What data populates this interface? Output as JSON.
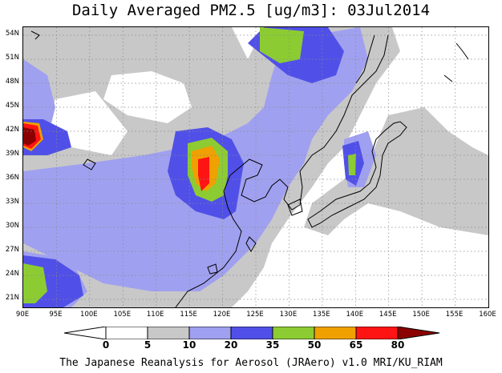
{
  "title": "Daily Averaged PM2.5 [ug/m3]: 03Jul2014",
  "footer": "The Japanese Reanalysis for Aerosol (JRAero) v1.0 MRI/KU_RIAM",
  "map": {
    "lon_range": [
      90,
      160
    ],
    "lat_range": [
      20,
      55
    ],
    "lat_ticks": [
      "54N",
      "51N",
      "48N",
      "45N",
      "42N",
      "39N",
      "36N",
      "33N",
      "30N",
      "27N",
      "24N",
      "21N"
    ],
    "lon_ticks": [
      "90E",
      "95E",
      "100E",
      "105E",
      "110E",
      "115E",
      "120E",
      "125E",
      "130E",
      "135E",
      "140E",
      "145E",
      "150E",
      "155E",
      "160E"
    ],
    "gridlines": "dotted"
  },
  "colorbar": {
    "levels": [
      "0",
      "5",
      "10",
      "20",
      "35",
      "50",
      "65",
      "80"
    ],
    "colors": [
      "#ffffff",
      "#ffffff",
      "#c8c8c8",
      "#a0a0f0",
      "#5050e8",
      "#8ccc32",
      "#f0a000",
      "#ff1414",
      "#8b0000"
    ]
  }
}
